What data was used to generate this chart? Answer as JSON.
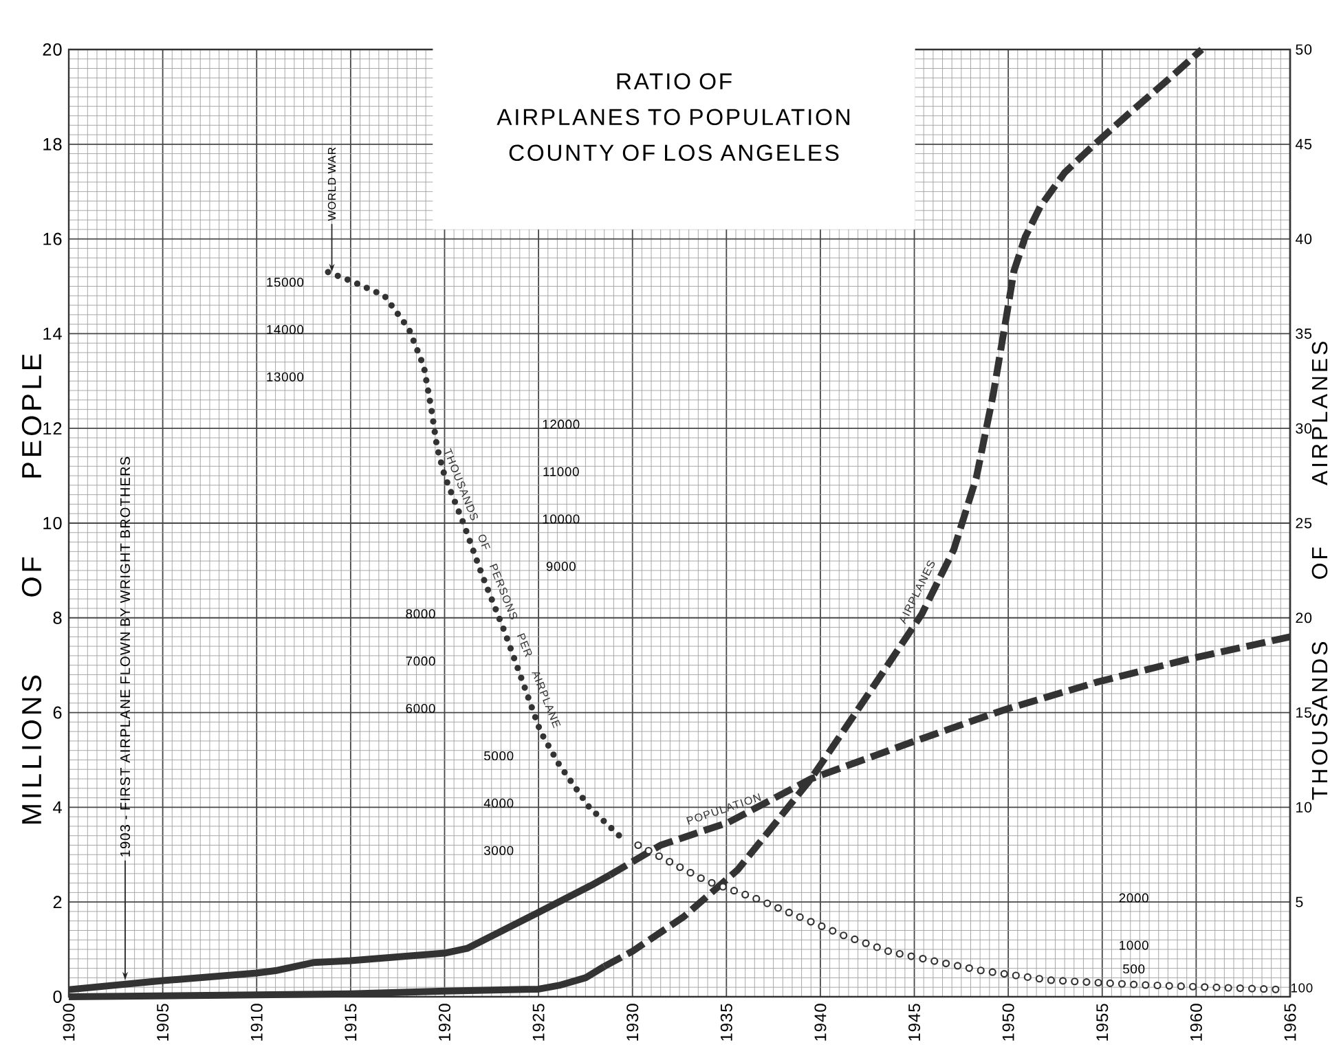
{
  "chart_data": {
    "type": "line",
    "title": "RATIO OF AIRPLANES TO POPULATION",
    "subtitle": "COUNTY OF LOS ANGELES",
    "ylabel": "MILLIONS OF PEOPLE",
    "y2label": "THOUSANDS OF AIRPLANES",
    "xlim": [
      1900,
      1965
    ],
    "xticks": [
      1900,
      1905,
      1910,
      1915,
      1920,
      1925,
      1930,
      1935,
      1940,
      1945,
      1950,
      1955,
      1960,
      1965
    ],
    "ylim": [
      0,
      20
    ],
    "yticks": [
      0,
      2,
      4,
      6,
      8,
      10,
      12,
      14,
      16,
      18,
      20
    ],
    "y2lim": [
      0,
      50
    ],
    "y2ticks": [
      5,
      10,
      15,
      20,
      25,
      30,
      35,
      40,
      45,
      50
    ],
    "y3lim": [
      0,
      20000
    ],
    "y3ticks": [
      12000,
      11000,
      10000,
      9000
    ],
    "grid": true,
    "annotations": [
      {
        "text": "1903 - FIRST AIRPLANE FLOWN BY WRIGHT BROTHERS",
        "x": 1903,
        "y": 0.35
      },
      {
        "text": "WORLD WAR",
        "x": 1914,
        "y": 15.3
      },
      "15000",
      "14000",
      "13000",
      "8000",
      "7000",
      "6000",
      "5000",
      "4000",
      "3000",
      "2000",
      "1000",
      "500",
      "100"
    ],
    "series": [
      {
        "color": "#333333",
        "line_style": "solid",
        "x": [
          1900,
          1905,
          1910,
          1911,
          1913,
          1915,
          1920,
          1921.2,
          1925,
          1927.8,
          1928.8
        ],
        "values": [
          0.15,
          0.34,
          0.5,
          0.55,
          0.72,
          0.76,
          0.92,
          1.02,
          1.78,
          2.35,
          2.57
        ]
      },
      {
        "name": "POPULATION",
        "color": "#333333",
        "line_style": "dashed",
        "x": [
          1928.8,
          1931.5,
          1935.1,
          1939.5,
          1944.9,
          1949.8,
          1954.7,
          1959.5,
          1965
        ],
        "values": [
          2.57,
          3.2,
          3.68,
          4.6,
          5.38,
          6.06,
          6.64,
          7.12,
          7.6
        ]
      },
      {
        "color": "#333333",
        "line_style": "solid",
        "axis": "y2",
        "x": [
          1900,
          1910,
          1915,
          1920,
          1925,
          1926.1,
          1927.5,
          1928.5
        ],
        "values": [
          0,
          0.1,
          0.15,
          0.3,
          0.4,
          0.6,
          1.0,
          1.6
        ]
      },
      {
        "name": "AIRPLANES",
        "color": "#333333",
        "line_style": "dashed",
        "axis": "y2",
        "x": [
          1928.5,
          1930,
          1931.5,
          1932.7,
          1935.6,
          1939.5,
          1942.5,
          1945.4,
          1947.1,
          1948.3,
          1949.2,
          1949.9,
          1950.3,
          1950.9,
          1951.7,
          1953.0,
          1954.6,
          1956.4,
          1958.5,
          1960.3
        ],
        "values": [
          1.6,
          2.4,
          3.4,
          4.2,
          6.7,
          11.5,
          15.9,
          20.2,
          23.6,
          27.4,
          31.8,
          35.9,
          38.3,
          40.1,
          41.7,
          43.5,
          45.0,
          46.6,
          48.4,
          50
        ]
      },
      {
        "name": "THOUSANDS OF PERSONS PER AIRPLANE",
        "color": "#333333",
        "line_style": "dotted",
        "axis": "y3",
        "x": [
          1913.8,
          1915.1,
          1916.8,
          1918.1,
          1918.9,
          1919.3,
          1919.6,
          1920.0,
          1921.0,
          1922.0,
          1923.2,
          1924.2,
          1925.1,
          1926.1,
          1927.7,
          1929.3
        ],
        "values": [
          15300,
          15100,
          14800,
          14100,
          13300,
          12400,
          11600,
          11000,
          10000,
          8900,
          7700,
          6600,
          5600,
          4900,
          4000,
          3400
        ]
      },
      {
        "color": "#333333",
        "line_style": "dotted",
        "axis": "y3",
        "x": [
          1930.3,
          1931.5,
          1932.7,
          1933.9,
          1936.4,
          1938.8,
          1941.2,
          1943.7,
          1946.1,
          1948.6,
          1952.2,
          1957.1,
          1964.6
        ],
        "values": [
          3200,
          2950,
          2700,
          2450,
          2100,
          1700,
          1300,
          950,
          750,
          550,
          350,
          250,
          150
        ]
      }
    ]
  }
}
